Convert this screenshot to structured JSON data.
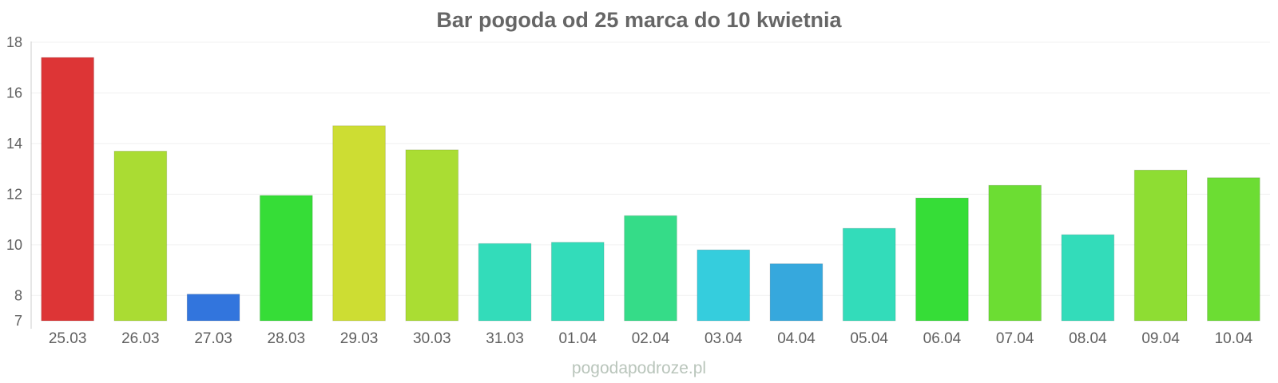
{
  "title": "Bar pogoda od 25 marca do 10 kwietnia",
  "watermark": "pogodapodroze.pl",
  "chart_data": {
    "type": "bar",
    "title": "Bar pogoda od 25 marca do 10 kwietnia",
    "xlabel": "",
    "ylabel": "",
    "ylim": [
      7,
      18
    ],
    "yticks": [
      7,
      8,
      10,
      12,
      14,
      16,
      18
    ],
    "grid": true,
    "categories": [
      "25.03",
      "26.03",
      "27.03",
      "28.03",
      "29.03",
      "30.03",
      "31.03",
      "01.04",
      "02.04",
      "03.04",
      "04.04",
      "05.04",
      "06.04",
      "07.04",
      "08.04",
      "09.04",
      "10.04"
    ],
    "values": [
      17.4,
      13.7,
      8.05,
      11.95,
      14.7,
      13.75,
      10.05,
      10.1,
      11.15,
      9.8,
      9.25,
      10.65,
      11.85,
      12.35,
      10.4,
      12.95,
      12.65
    ],
    "colors": [
      "#dd3536",
      "#aadc33",
      "#3275dd",
      "#36dd37",
      "#cddd33",
      "#aadd33",
      "#33dcba",
      "#33dcba",
      "#35dc88",
      "#35cddd",
      "#36a8dd",
      "#33dcba",
      "#36dd37",
      "#6cdd33",
      "#33dcba",
      "#8edd33",
      "#6cdd33"
    ]
  }
}
